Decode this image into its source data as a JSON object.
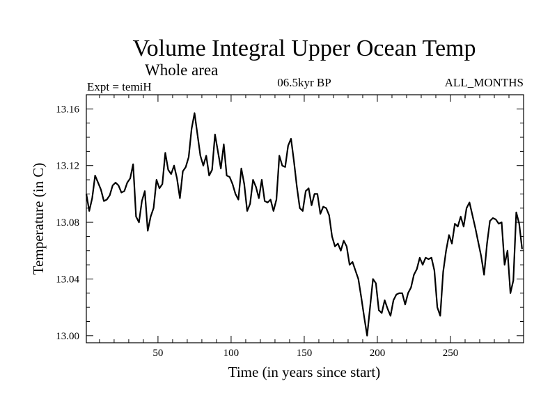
{
  "chart_data": {
    "type": "line",
    "title": "Volume Integral Upper Ocean Temp",
    "subtitle": "Whole area",
    "header_left": "Expt = temiH",
    "header_center": "06.5kyr BP",
    "header_right": "ALL_MONTHS",
    "xlabel": "Time (in years since start)",
    "ylabel": "Temperature (in C)",
    "xlim": [
      1,
      300
    ],
    "ylim": [
      12.995,
      13.17
    ],
    "x_ticks": [
      50,
      100,
      150,
      200,
      250
    ],
    "x_tick_labels": [
      "50",
      "100",
      "150",
      "200",
      "250"
    ],
    "y_ticks": [
      13.0,
      13.04,
      13.08,
      13.12,
      13.16
    ],
    "y_tick_labels": [
      "13.00",
      "13.04",
      "13.08",
      "13.12",
      "13.16"
    ],
    "grid": false,
    "series": [
      {
        "name": "Volume integral upper ocean temperature",
        "color": "#000000",
        "x": [
          1,
          3,
          5,
          7,
          9,
          11,
          13,
          15,
          17,
          19,
          21,
          23,
          25,
          27,
          29,
          31,
          33,
          35,
          37,
          39,
          41,
          43,
          45,
          47,
          49,
          51,
          53,
          55,
          57,
          59,
          61,
          63,
          65,
          67,
          69,
          71,
          73,
          75,
          77,
          79,
          81,
          83,
          85,
          87,
          89,
          91,
          93,
          95,
          97,
          99,
          101,
          103,
          105,
          107,
          109,
          111,
          113,
          115,
          117,
          119,
          121,
          123,
          125,
          127,
          129,
          131,
          133,
          135,
          137,
          139,
          141,
          143,
          145,
          147,
          149,
          151,
          153,
          155,
          157,
          159,
          161,
          163,
          165,
          167,
          169,
          171,
          173,
          175,
          177,
          179,
          181,
          183,
          185,
          187,
          189,
          191,
          193,
          195,
          197,
          199,
          201,
          203,
          205,
          207,
          209,
          211,
          213,
          215,
          217,
          219,
          221,
          223,
          225,
          227,
          229,
          231,
          233,
          235,
          237,
          239,
          241,
          243,
          245,
          247,
          249,
          251,
          253,
          255,
          257,
          259,
          261,
          263,
          265,
          267,
          269,
          271,
          273,
          275,
          277,
          279,
          281,
          283,
          285,
          287,
          289,
          291,
          293,
          295,
          297,
          299
        ],
        "values": [
          13.1,
          13.088,
          13.097,
          13.113,
          13.108,
          13.103,
          13.095,
          13.096,
          13.099,
          13.106,
          13.108,
          13.106,
          13.101,
          13.102,
          13.108,
          13.111,
          13.121,
          13.084,
          13.08,
          13.095,
          13.102,
          13.074,
          13.084,
          13.09,
          13.11,
          13.104,
          13.107,
          13.129,
          13.117,
          13.114,
          13.12,
          13.111,
          13.097,
          13.116,
          13.119,
          13.126,
          13.146,
          13.157,
          13.142,
          13.127,
          13.12,
          13.127,
          13.113,
          13.117,
          13.142,
          13.13,
          13.118,
          13.135,
          13.113,
          13.112,
          13.107,
          13.1,
          13.096,
          13.118,
          13.107,
          13.088,
          13.093,
          13.11,
          13.105,
          13.097,
          13.11,
          13.095,
          13.094,
          13.096,
          13.088,
          13.096,
          13.127,
          13.12,
          13.119,
          13.134,
          13.139,
          13.123,
          13.105,
          13.09,
          13.088,
          13.102,
          13.104,
          13.092,
          13.1,
          13.1,
          13.086,
          13.091,
          13.09,
          13.085,
          13.07,
          13.063,
          13.065,
          13.06,
          13.067,
          13.063,
          13.05,
          13.052,
          13.046,
          13.04,
          13.027,
          13.013,
          13.0,
          13.02,
          13.04,
          13.037,
          13.018,
          13.016,
          13.025,
          13.019,
          13.014,
          13.025,
          13.029,
          13.03,
          13.03,
          13.022,
          13.03,
          13.034,
          13.043,
          13.047,
          13.055,
          13.05,
          13.055,
          13.054,
          13.055,
          13.046,
          13.02,
          13.014,
          13.045,
          13.06,
          13.071,
          13.065,
          13.079,
          13.077,
          13.084,
          13.077,
          13.09,
          13.094,
          13.085,
          13.076,
          13.066,
          13.056,
          13.043,
          13.065,
          13.081,
          13.083,
          13.082,
          13.079,
          13.08,
          13.05,
          13.06,
          13.03,
          13.039,
          13.087,
          13.079,
          13.061
        ]
      }
    ]
  }
}
